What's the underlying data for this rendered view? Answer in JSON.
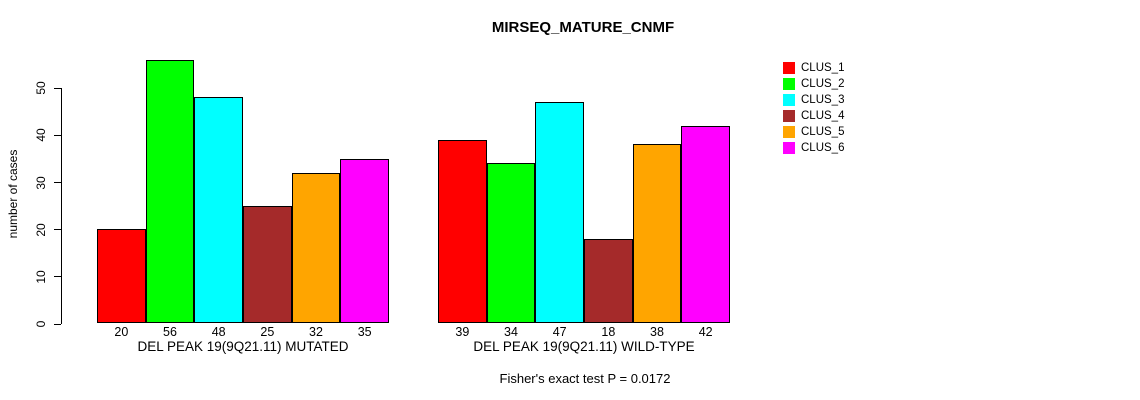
{
  "chart_data": {
    "type": "bar",
    "title": "MIRSEQ_MATURE_CNMF",
    "ylabel": "number of cases",
    "xlabel": "",
    "ylim": [
      0,
      56
    ],
    "yticks": [
      0,
      10,
      20,
      30,
      40,
      50
    ],
    "grid": false,
    "legend_position": "right",
    "bar_value_labels": true,
    "categories": [
      "DEL PEAK 19(9Q21.11) MUTATED",
      "DEL PEAK 19(9Q21.11) WILD-TYPE"
    ],
    "series": [
      {
        "name": "CLUS_1",
        "color": "#ff0000",
        "values": [
          20,
          39
        ]
      },
      {
        "name": "CLUS_2",
        "color": "#00ff00",
        "values": [
          56,
          34
        ]
      },
      {
        "name": "CLUS_3",
        "color": "#00ffff",
        "values": [
          48,
          47
        ]
      },
      {
        "name": "CLUS_4",
        "color": "#a52a2a",
        "values": [
          25,
          18
        ]
      },
      {
        "name": "CLUS_5",
        "color": "#ffa500",
        "values": [
          32,
          38
        ]
      },
      {
        "name": "CLUS_6",
        "color": "#ff00ff",
        "values": [
          35,
          42
        ]
      }
    ],
    "annotation": "Fisher's exact test P = 0.0172",
    "background_color": "#ffffff",
    "text_color": "#000000",
    "bar_border_color": "#000000"
  }
}
